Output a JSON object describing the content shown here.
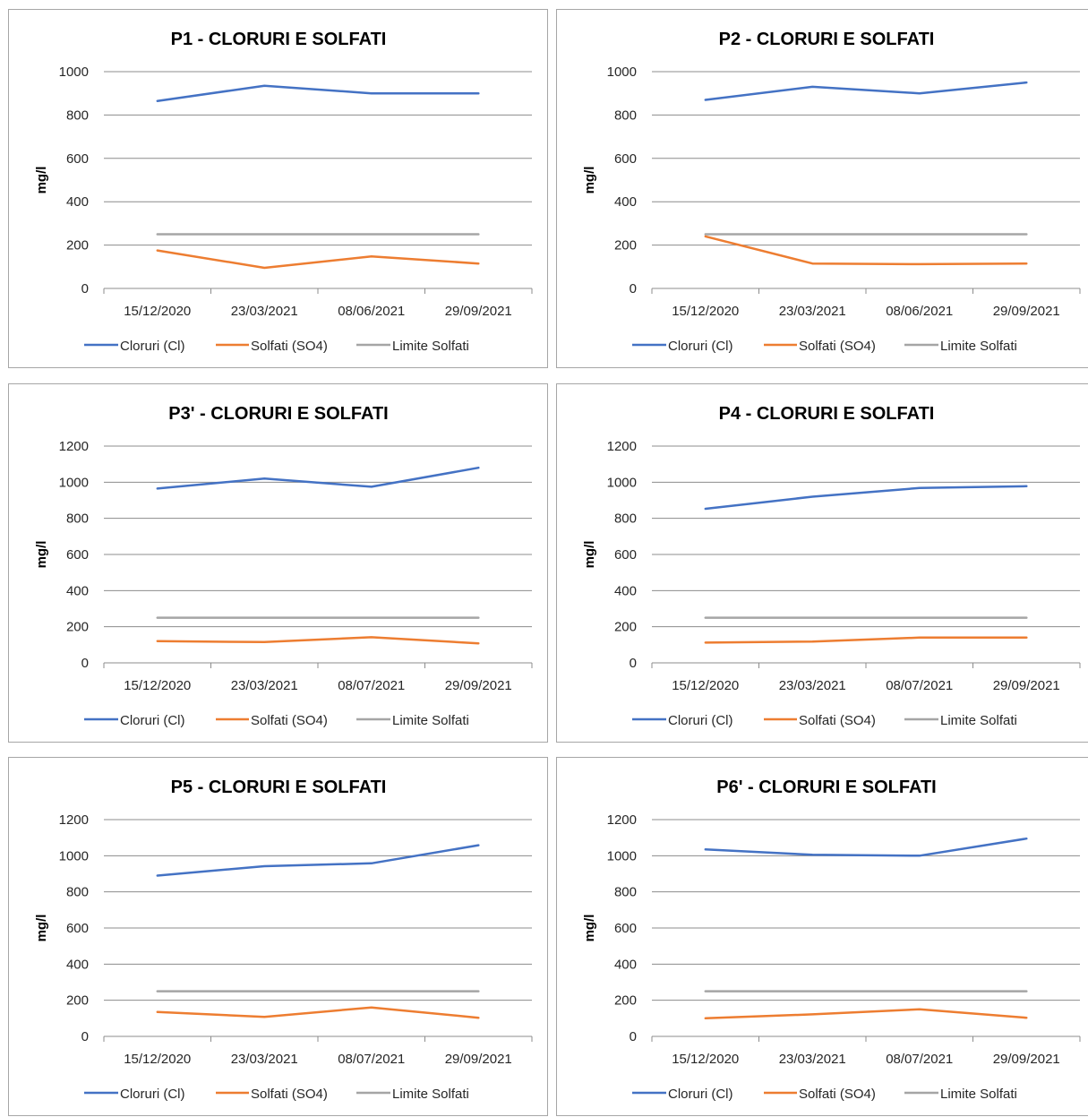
{
  "colors": {
    "cloruri": "#4472c4",
    "solfati": "#ed7d31",
    "limite": "#a5a5a5",
    "grid": "#8c8c8c"
  },
  "chart_data": [
    {
      "type": "line",
      "title": "P1 - CLORURI E SOLFATI",
      "ylabel": "mg/l",
      "ylim": [
        0,
        1000
      ],
      "yticks": [
        0,
        200,
        400,
        600,
        800,
        1000
      ],
      "categories": [
        "15/12/2020",
        "23/03/2021",
        "08/06/2021",
        "29/09/2021"
      ],
      "grid": true,
      "legend": "bottom",
      "series": [
        {
          "name": "Cloruri (Cl)",
          "values": [
            865,
            935,
            900,
            900
          ]
        },
        {
          "name": "Solfati (SO4)",
          "values": [
            175,
            95,
            148,
            115
          ]
        },
        {
          "name": "Limite Solfati",
          "values": [
            250,
            250,
            250,
            250
          ]
        }
      ]
    },
    {
      "type": "line",
      "title": "P2 - CLORURI E SOLFATI",
      "ylabel": "mg/l",
      "ylim": [
        0,
        1000
      ],
      "yticks": [
        0,
        200,
        400,
        600,
        800,
        1000
      ],
      "categories": [
        "15/12/2020",
        "23/03/2021",
        "08/06/2021",
        "29/09/2021"
      ],
      "grid": true,
      "legend": "bottom",
      "series": [
        {
          "name": "Cloruri (Cl)",
          "values": [
            870,
            930,
            900,
            950
          ]
        },
        {
          "name": "Solfati (SO4)",
          "values": [
            240,
            115,
            112,
            115
          ]
        },
        {
          "name": "Limite Solfati",
          "values": [
            250,
            250,
            250,
            250
          ]
        }
      ]
    },
    {
      "type": "line",
      "title": "P3' - CLORURI E SOLFATI",
      "ylabel": "mg/l",
      "ylim": [
        0,
        1200
      ],
      "yticks": [
        0,
        200,
        400,
        600,
        800,
        1000,
        1200
      ],
      "categories": [
        "15/12/2020",
        "23/03/2021",
        "08/07/2021",
        "29/09/2021"
      ],
      "grid": true,
      "legend": "bottom",
      "series": [
        {
          "name": "Cloruri (Cl)",
          "values": [
            965,
            1020,
            975,
            1080
          ]
        },
        {
          "name": "Solfati (SO4)",
          "values": [
            120,
            115,
            142,
            108
          ]
        },
        {
          "name": "Limite Solfati",
          "values": [
            250,
            250,
            250,
            250
          ]
        }
      ]
    },
    {
      "type": "line",
      "title": "P4 - CLORURI E SOLFATI",
      "ylabel": "mg/l",
      "ylim": [
        0,
        1200
      ],
      "yticks": [
        0,
        200,
        400,
        600,
        800,
        1000,
        1200
      ],
      "categories": [
        "15/12/2020",
        "23/03/2021",
        "08/07/2021",
        "29/09/2021"
      ],
      "grid": true,
      "legend": "bottom",
      "series": [
        {
          "name": "Cloruri (Cl)",
          "values": [
            853,
            920,
            968,
            978
          ]
        },
        {
          "name": "Solfati (SO4)",
          "values": [
            112,
            118,
            140,
            140
          ]
        },
        {
          "name": "Limite Solfati",
          "values": [
            250,
            250,
            250,
            250
          ]
        }
      ]
    },
    {
      "type": "line",
      "title": "P5 - CLORURI E SOLFATI",
      "ylabel": "mg/l",
      "ylim": [
        0,
        1200
      ],
      "yticks": [
        0,
        200,
        400,
        600,
        800,
        1000,
        1200
      ],
      "categories": [
        "15/12/2020",
        "23/03/2021",
        "08/07/2021",
        "29/09/2021"
      ],
      "grid": true,
      "legend": "bottom",
      "series": [
        {
          "name": "Cloruri (Cl)",
          "values": [
            890,
            942,
            958,
            1058
          ]
        },
        {
          "name": "Solfati (SO4)",
          "values": [
            135,
            108,
            160,
            103
          ]
        },
        {
          "name": "Limite Solfati",
          "values": [
            250,
            250,
            250,
            250
          ]
        }
      ]
    },
    {
      "type": "line",
      "title": "P6' - CLORURI E SOLFATI",
      "ylabel": "mg/l",
      "ylim": [
        0,
        1200
      ],
      "yticks": [
        0,
        200,
        400,
        600,
        800,
        1000,
        1200
      ],
      "categories": [
        "15/12/2020",
        "23/03/2021",
        "08/07/2021",
        "29/09/2021"
      ],
      "grid": true,
      "legend": "bottom",
      "series": [
        {
          "name": "Cloruri (Cl)",
          "values": [
            1035,
            1005,
            1000,
            1095
          ]
        },
        {
          "name": "Solfati (SO4)",
          "values": [
            100,
            122,
            150,
            103
          ]
        },
        {
          "name": "Limite Solfati",
          "values": [
            250,
            250,
            250,
            250
          ]
        }
      ]
    }
  ]
}
